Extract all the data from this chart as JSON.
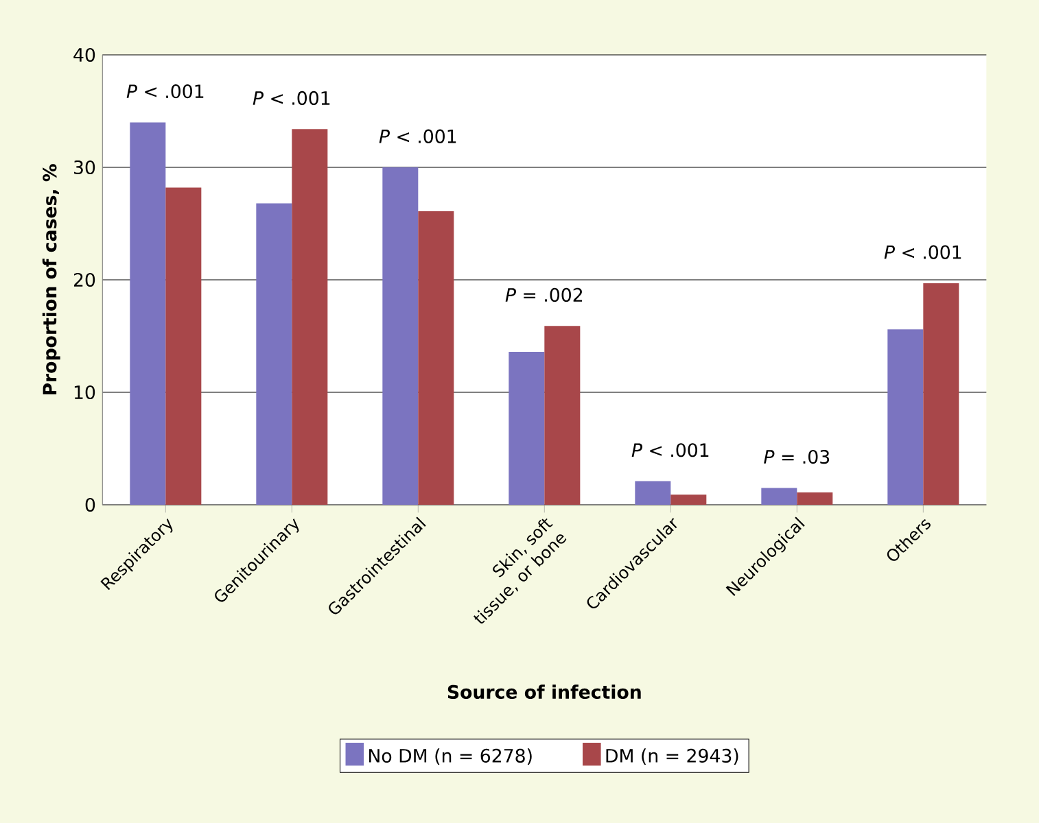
{
  "chart_data": {
    "type": "bar",
    "xlabel": "Source of infection",
    "ylabel": "Proportion of cases, %",
    "categories": [
      "Respiratory",
      "Genitourinary",
      "Gastrointestinal",
      "Skin, soft tissue, or bone",
      "Cardiovascular",
      "Neurological",
      "Others"
    ],
    "series": [
      {
        "name": "No DM (n = 6278)",
        "color": "#7b74c0",
        "values": [
          34.0,
          26.8,
          30.0,
          13.6,
          2.1,
          1.5,
          15.6
        ]
      },
      {
        "name": "DM (n = 2943)",
        "color": "#a8474a",
        "values": [
          28.2,
          33.4,
          26.1,
          15.9,
          0.9,
          1.1,
          19.7
        ]
      }
    ],
    "ylim": [
      0,
      40
    ],
    "yticks": [
      0,
      10,
      20,
      30,
      40
    ],
    "grid": "y",
    "legend": "bottom",
    "annotations": [
      "*P* < .001",
      "*P* < .001",
      "*P* < .001",
      "*P* = .002",
      "*P* < .001",
      "*P* = .03",
      "*P* < .001"
    ]
  }
}
